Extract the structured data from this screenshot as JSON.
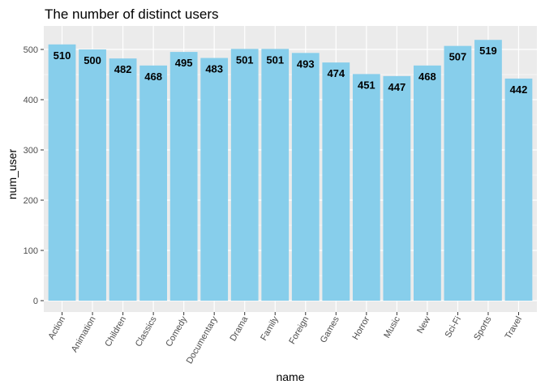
{
  "chart_data": {
    "type": "bar",
    "title": "The number of distinct users",
    "xlabel": "name",
    "ylabel": "num_user",
    "categories": [
      "Action",
      "Animation",
      "Children",
      "Classics",
      "Comedy",
      "Documentary",
      "Drama",
      "Family",
      "Foreign",
      "Games",
      "Horror",
      "Music",
      "New",
      "Sci-Fi",
      "Sports",
      "Travel"
    ],
    "values": [
      510,
      500,
      482,
      468,
      495,
      483,
      501,
      501,
      493,
      474,
      451,
      447,
      468,
      507,
      519,
      442
    ],
    "ylim": [
      0,
      540
    ],
    "yticks": [
      0,
      100,
      200,
      300,
      400,
      500
    ],
    "grid": true,
    "colors": {
      "bar": "#87ceeb",
      "panel": "#ebebeb",
      "grid": "#ffffff"
    }
  }
}
